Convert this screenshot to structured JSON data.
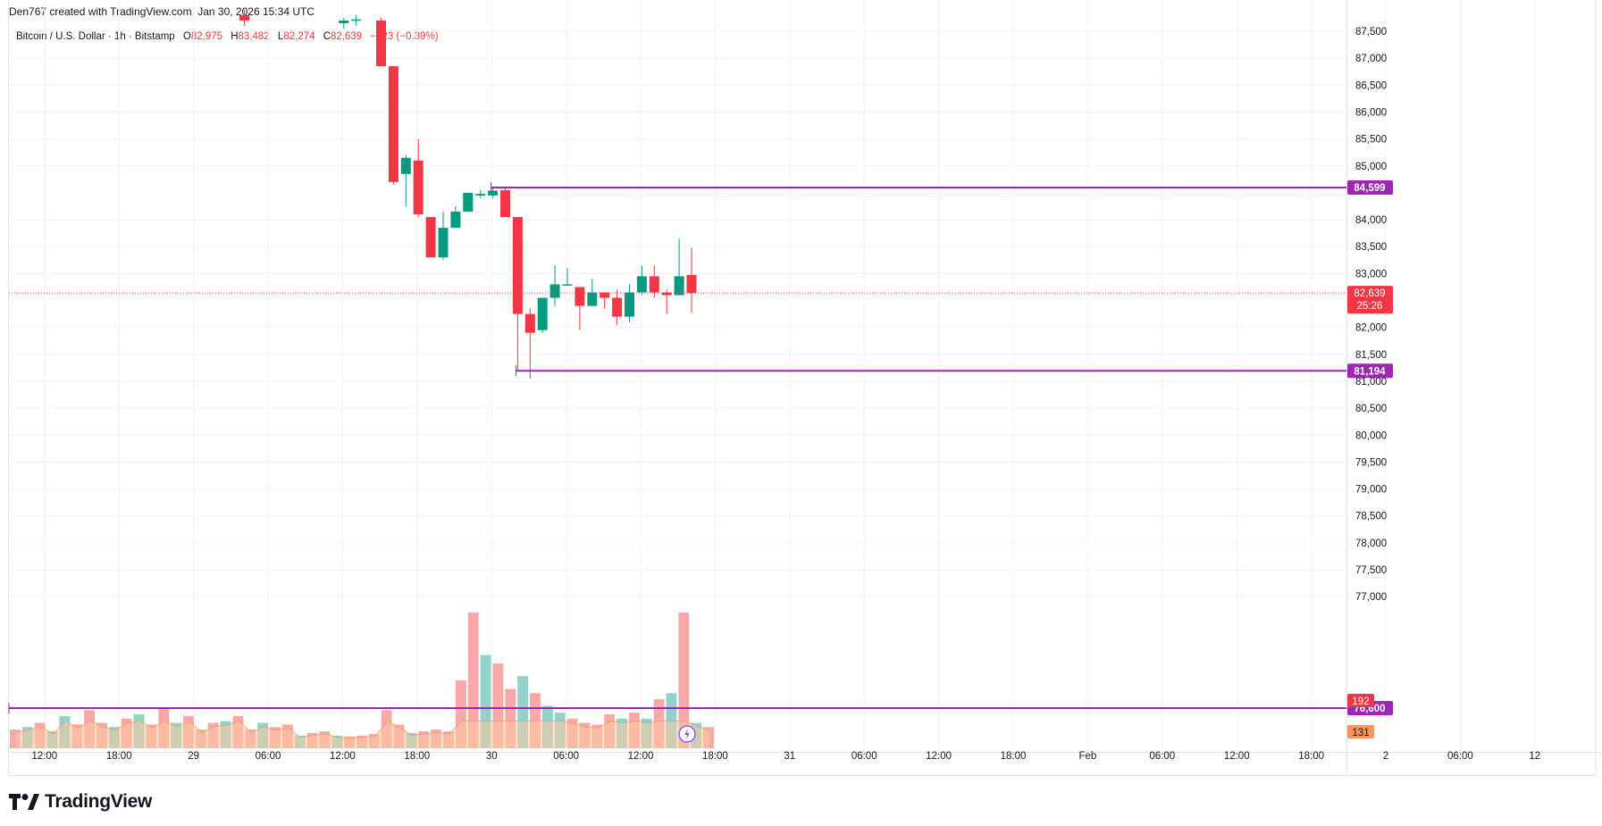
{
  "header": {
    "created_by": "Den767 created with TradingView.com, Jan 30, 2026 15:34 UTC"
  },
  "legend": {
    "symbol": "Bitcoin / U.S. Dollar · 1h · Bitstamp",
    "o_label": "O",
    "o_value": "82,975",
    "h_label": "H",
    "h_value": "83,482",
    "l_label": "L",
    "l_value": "82,274",
    "c_label": "C",
    "c_value": "82,639",
    "change": "−323 (−0.39%)"
  },
  "branding": {
    "name": "TradingView"
  },
  "colors": {
    "up": "#089981",
    "down": "#f23645",
    "level": "#9c27b0",
    "volume_up": "#92d2cc",
    "volume_down": "#f7a9a7",
    "volume_ma": "#ffc9a1",
    "volume_orange": "#f7955a"
  },
  "chart_data": {
    "type": "candlestick",
    "symbol": "Bitcoin / U.S. Dollar",
    "interval": "1h",
    "exchange": "Bitstamp",
    "y_axis": {
      "ylim": [
        76300,
        87700
      ],
      "ticks": [
        87500,
        87000,
        86500,
        86000,
        85500,
        85000,
        84000,
        83500,
        83000,
        82000,
        81500,
        81000,
        80500,
        80000,
        79500,
        79000,
        78500,
        78000,
        77500,
        77000
      ],
      "tick_labels": [
        "87,500",
        "87,000",
        "86,500",
        "86,000",
        "85,500",
        "85,000",
        "84,000",
        "83,500",
        "83,000",
        "82,000",
        "81,500",
        "81,000",
        "80,500",
        "80,000",
        "79,500",
        "79,000",
        "78,500",
        "78,000",
        "77,500",
        "77,000"
      ]
    },
    "x_axis": {
      "labels": [
        {
          "label": "12:00",
          "bar": 1.9
        },
        {
          "label": "18:00",
          "bar": 7.9
        },
        {
          "label": "29",
          "bar": 13.9
        },
        {
          "label": "06:00",
          "bar": 19.9
        },
        {
          "label": "12:00",
          "bar": 25.9
        },
        {
          "label": "18:00",
          "bar": 31.9
        },
        {
          "label": "30",
          "bar": 37.9
        },
        {
          "label": "06:00",
          "bar": 43.9
        },
        {
          "label": "12:00",
          "bar": 49.9
        },
        {
          "label": "18:00",
          "bar": 55.9
        },
        {
          "label": "31",
          "bar": 61.9
        },
        {
          "label": "06:00",
          "bar": 67.9
        },
        {
          "label": "12:00",
          "bar": 73.9
        },
        {
          "label": "18:00",
          "bar": 79.9
        },
        {
          "label": "Feb",
          "bar": 85.9
        },
        {
          "label": "06:00",
          "bar": 91.9
        },
        {
          "label": "12:00",
          "bar": 97.9
        },
        {
          "label": "18:00",
          "bar": 103.9
        },
        {
          "label": "2",
          "bar": 109.9
        },
        {
          "label": "06:00",
          "bar": 115.9
        },
        {
          "label": "12",
          "bar": 121.9
        }
      ]
    },
    "candles": [
      {
        "bar": 18,
        "open": 87800,
        "high": 87900,
        "low": 87600,
        "close": 87700
      },
      {
        "bar": 26,
        "open": 87650,
        "high": 87750,
        "low": 87550,
        "close": 87700
      },
      {
        "bar": 27,
        "open": 87700,
        "high": 87800,
        "low": 87600,
        "close": 87720
      },
      {
        "bar": 29,
        "open": 87700,
        "high": 87750,
        "low": 86850,
        "close": 86850
      },
      {
        "bar": 30,
        "open": 86850,
        "high": 86850,
        "low": 84650,
        "close": 84700
      },
      {
        "bar": 31,
        "open": 84850,
        "high": 85200,
        "low": 84250,
        "close": 85150
      },
      {
        "bar": 32,
        "open": 85100,
        "high": 85500,
        "low": 84050,
        "close": 84100
      },
      {
        "bar": 33,
        "open": 84050,
        "high": 84050,
        "low": 83300,
        "close": 83300
      },
      {
        "bar": 34,
        "open": 83300,
        "high": 84150,
        "low": 83250,
        "close": 83850
      },
      {
        "bar": 35,
        "open": 83850,
        "high": 84250,
        "low": 83850,
        "close": 84150
      },
      {
        "bar": 36,
        "open": 84150,
        "high": 84500,
        "low": 84150,
        "close": 84500
      },
      {
        "bar": 37,
        "open": 84450,
        "high": 84550,
        "low": 84400,
        "close": 84480
      },
      {
        "bar": 38,
        "open": 84450,
        "high": 84600,
        "low": 84400,
        "close": 84540
      },
      {
        "bar": 39,
        "open": 84550,
        "high": 84600,
        "low": 84050,
        "close": 84050
      },
      {
        "bar": 40,
        "open": 84050,
        "high": 84050,
        "low": 81200,
        "close": 82250
      },
      {
        "bar": 41,
        "open": 82250,
        "high": 82350,
        "low": 81050,
        "close": 81900
      },
      {
        "bar": 42,
        "open": 81950,
        "high": 82550,
        "low": 81900,
        "close": 82550
      },
      {
        "bar": 43,
        "open": 82550,
        "high": 83150,
        "low": 82400,
        "close": 82800
      },
      {
        "bar": 44,
        "open": 82800,
        "high": 83100,
        "low": 82800,
        "close": 82800
      },
      {
        "bar": 45,
        "open": 82750,
        "high": 82750,
        "low": 81950,
        "close": 82400
      },
      {
        "bar": 46,
        "open": 82400,
        "high": 82900,
        "low": 82400,
        "close": 82650
      },
      {
        "bar": 47,
        "open": 82650,
        "high": 82650,
        "low": 82350,
        "close": 82550
      },
      {
        "bar": 48,
        "open": 82550,
        "high": 82700,
        "low": 82050,
        "close": 82200
      },
      {
        "bar": 49,
        "open": 82200,
        "high": 82800,
        "low": 82100,
        "close": 82650
      },
      {
        "bar": 50,
        "open": 82650,
        "high": 83150,
        "low": 82600,
        "close": 82950
      },
      {
        "bar": 51,
        "open": 82950,
        "high": 83150,
        "low": 82550,
        "close": 82650
      },
      {
        "bar": 52,
        "open": 82650,
        "high": 82700,
        "low": 82250,
        "close": 82600
      },
      {
        "bar": 53,
        "open": 82600,
        "high": 83650,
        "low": 82600,
        "close": 82950
      },
      {
        "bar": 54,
        "open": 82975,
        "high": 83482,
        "low": 82274,
        "close": 82639
      }
    ],
    "horizontal_levels": [
      {
        "value": 84599,
        "label": "84,599",
        "from_bar": 38
      },
      {
        "value": 81194,
        "label": "81,194",
        "from_bar": 40
      },
      {
        "value": 76600,
        "label": "76,600",
        "from_bar": 0
      }
    ],
    "last_price": {
      "value": 82639,
      "label": "82,639",
      "countdown": "25:26"
    },
    "volume": {
      "values": [
        22,
        25,
        30,
        20,
        38,
        28,
        45,
        30,
        25,
        35,
        40,
        28,
        48,
        30,
        38,
        22,
        30,
        32,
        38,
        22,
        30,
        25,
        28,
        15,
        18,
        20,
        15,
        14,
        15,
        17,
        45,
        28,
        18,
        20,
        22,
        20,
        80,
        160,
        110,
        100,
        70,
        85,
        65,
        50,
        42,
        35,
        30,
        28,
        40,
        35,
        42,
        35,
        58,
        65,
        160,
        30,
        25,
        35,
        25,
        15,
        125,
        100,
        45,
        80,
        60,
        35,
        28,
        45,
        40,
        25,
        80,
        55,
        38,
        42,
        30,
        25,
        30,
        28,
        35,
        32,
        45,
        22,
        25,
        35,
        40,
        30,
        65,
        55
      ],
      "colors": [
        "down",
        "up",
        "down",
        "up",
        "up",
        "down",
        "down",
        "down",
        "up",
        "down",
        "up",
        "down",
        "down",
        "up",
        "down",
        "down",
        "down",
        "up",
        "down",
        "down",
        "up",
        "down",
        "down",
        "up",
        "down",
        "down",
        "up",
        "down",
        "down",
        "down",
        "down",
        "down",
        "up",
        "down",
        "down",
        "down",
        "down",
        "down",
        "up",
        "down",
        "down",
        "up",
        "down",
        "up",
        "up",
        "down",
        "down",
        "down",
        "down",
        "up",
        "down",
        "up",
        "down",
        "up",
        "down",
        "up",
        "down",
        "down",
        "down",
        "up",
        "down",
        "down",
        "up",
        "down",
        "down",
        "down",
        "up",
        "down",
        "up",
        "up",
        "down",
        "down",
        "up",
        "down",
        "down",
        "down",
        "up",
        "down",
        "down",
        "down",
        "up",
        "down",
        "up",
        "down",
        "down",
        "down",
        "up",
        "down"
      ],
      "readouts": [
        "192",
        "131"
      ]
    }
  }
}
